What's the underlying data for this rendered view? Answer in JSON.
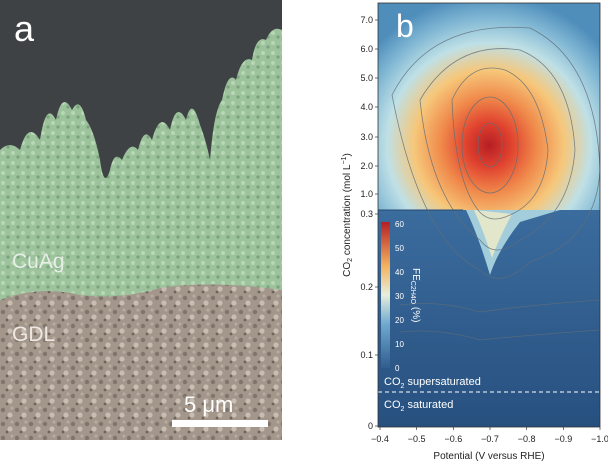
{
  "panel_a": {
    "label": "a",
    "material_label": "CuAg",
    "substrate_label": "GDL",
    "scale_bar_label": "5 μm",
    "colors": {
      "background": "#3f4244",
      "dendrite": "#9cc39c",
      "gdl": "#a89c90"
    }
  },
  "panel_b": {
    "label": "b",
    "supersaturated_label": "CO",
    "supersaturated_sub": "2",
    "supersaturated_rest": " supersaturated",
    "saturated_label": "CO",
    "saturated_sub": "2",
    "saturated_rest": " saturated"
  },
  "chart_data": {
    "type": "heatmap",
    "xlabel": "Potential (V versus RHE)",
    "ylabel_prefix": "CO",
    "ylabel_sub": "2",
    "ylabel_rest": " concentration (mol L",
    "ylabel_sup": "−1",
    "ylabel_end": ")",
    "x_ticks": [
      "−0.4",
      "−0.5",
      "−0.6",
      "−0.7",
      "−0.8",
      "−0.9",
      "−1.0"
    ],
    "y_ticks_upper": [
      "7.0",
      "6.0",
      "5.0",
      "4.0",
      "3.0",
      "2.0",
      "1.0",
      "0.3"
    ],
    "y_ticks_lower": [
      "0.2",
      "0.1",
      "0"
    ],
    "colorbar": {
      "label_prefix": "FE",
      "label_sub": "C2H4O",
      "label_rest": " (%)",
      "ticks": [
        "60",
        "50",
        "40",
        "30",
        "20",
        "10",
        "0"
      ],
      "range": [
        0,
        60
      ]
    },
    "peak": {
      "x": -0.7,
      "y": 3.0,
      "value": 60
    },
    "colors": {
      "low": "#2c5a8a",
      "high": "#b51f24"
    }
  }
}
